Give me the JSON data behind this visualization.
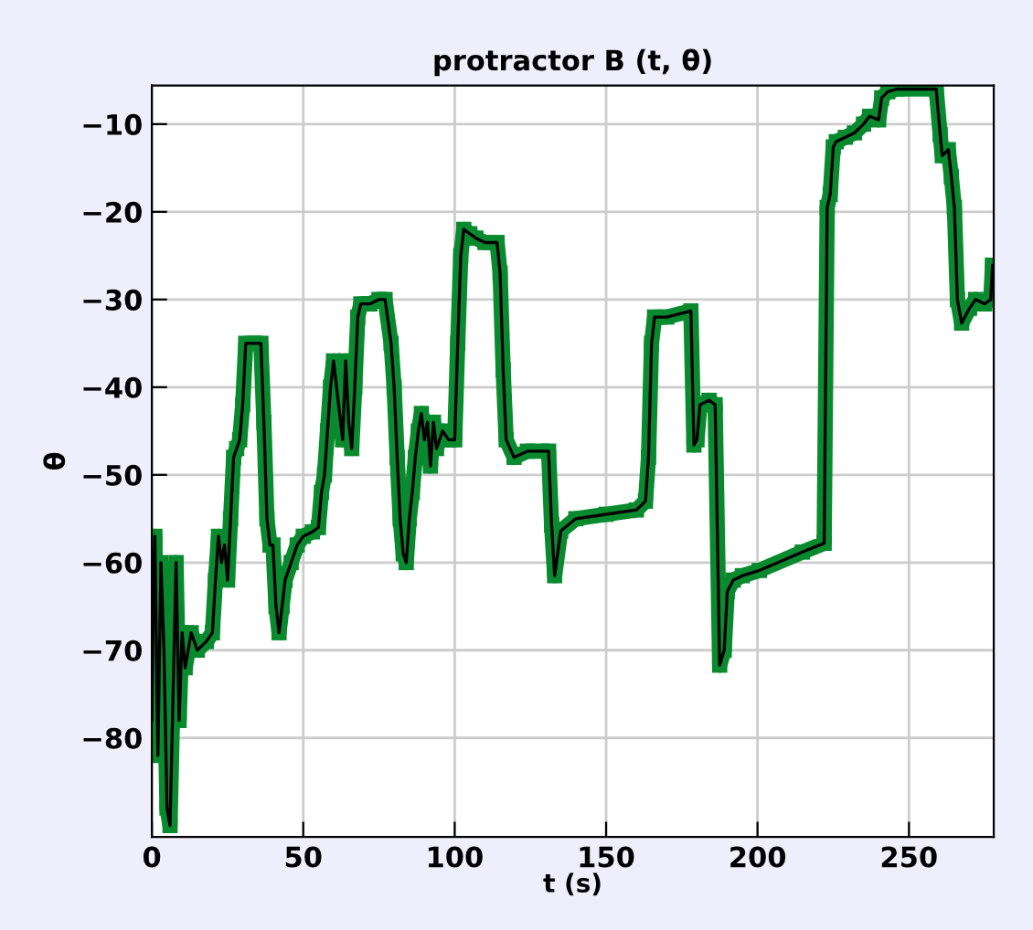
{
  "chart_data": {
    "type": "line",
    "title": "protractor B (t, θ)",
    "xlabel": "t (s)",
    "ylabel": "θ",
    "xlim": [
      0,
      278
    ],
    "ylim": [
      -91.3,
      -5.6
    ],
    "xticks": [
      0,
      50,
      100,
      150,
      200,
      250
    ],
    "yticks": [
      -80,
      -70,
      -60,
      -50,
      -40,
      -30,
      -20,
      -10
    ],
    "grid": true,
    "x": [
      0,
      0.5,
      1,
      2,
      3,
      4,
      5,
      6,
      7,
      8,
      9,
      10,
      11,
      13,
      15,
      18,
      20,
      21,
      22,
      23,
      24,
      25,
      26,
      27,
      28,
      29,
      30,
      31,
      34,
      36,
      37,
      38,
      39,
      40,
      41,
      42,
      43,
      44,
      46,
      48,
      50,
      53,
      55,
      56,
      57,
      58,
      59,
      60,
      61,
      62,
      63,
      64,
      65,
      66,
      67,
      68,
      69,
      72,
      75,
      77,
      79,
      80,
      81,
      82,
      83,
      84,
      85,
      86,
      87,
      88,
      89,
      90,
      91,
      92,
      93,
      94,
      96,
      98,
      100,
      101,
      102,
      103,
      105,
      107,
      110,
      114,
      115,
      116,
      117,
      119.6,
      124,
      131,
      132,
      133,
      135,
      140,
      150,
      160,
      163,
      164,
      165,
      166,
      170,
      178,
      179,
      180,
      181,
      184,
      186,
      187.5,
      189,
      190,
      192,
      195,
      200.6,
      214.8,
      222,
      223,
      224,
      225,
      226,
      229,
      232,
      235,
      237,
      240,
      241,
      243,
      246,
      259,
      260.3,
      261,
      263,
      264,
      265,
      266,
      267.4,
      270,
      272,
      275,
      277,
      277.6
    ],
    "series": [
      {
        "type": "line",
        "color": "#0a8a2e",
        "marker": "square",
        "values": [
          -78,
          -62,
          -57,
          -82,
          -60,
          -70,
          -88,
          -90,
          -75,
          -60,
          -78,
          -68,
          -72,
          -68,
          -70,
          -69,
          -68,
          -62,
          -57,
          -60,
          -58,
          -62,
          -55,
          -48,
          -47,
          -46,
          -42,
          -35,
          -35,
          -35,
          -44,
          -55,
          -58,
          -58,
          -65,
          -68,
          -65,
          -62,
          -60,
          -58,
          -57,
          -56.5,
          -56,
          -52,
          -50,
          -45,
          -40,
          -37,
          -40,
          -43,
          -46,
          -37,
          -44,
          -47,
          -40,
          -32,
          -30.5,
          -30.5,
          -30,
          -30,
          -35,
          -40,
          -48,
          -55,
          -59,
          -60,
          -55,
          -52,
          -48,
          -45,
          -43,
          -46,
          -44,
          -49,
          -44,
          -47,
          -45,
          -46,
          -46,
          -35,
          -25,
          -22,
          -22.5,
          -23,
          -23.5,
          -23.5,
          -27,
          -38,
          -46,
          -48,
          -47.3,
          -47.3,
          -55.7,
          -61.5,
          -56.4,
          -55,
          -54.5,
          -54,
          -53,
          -48,
          -35,
          -32,
          -32,
          -31.3,
          -46.6,
          -46,
          -42,
          -41.5,
          -42,
          -71.7,
          -70,
          -63.3,
          -62,
          -61.5,
          -60.9,
          -58.8,
          -57.8,
          -19.5,
          -18,
          -12.6,
          -12,
          -11.5,
          -11,
          -10,
          -9.1,
          -9.5,
          -7,
          -6.3,
          -6,
          -6,
          -11.2,
          -13.6,
          -12.9,
          -16,
          -19.5,
          -30,
          -32.7,
          -31,
          -30,
          -30.5,
          -30,
          -26.1
        ]
      },
      {
        "color": "#000000",
        "values": [
          -78,
          -62,
          -57,
          -82,
          -60,
          -70,
          -88,
          -90,
          -75,
          -60,
          -78,
          -68,
          -72,
          -68,
          -70,
          -69,
          -68,
          -62,
          -57,
          -60,
          -58,
          -62,
          -55,
          -48,
          -47,
          -46,
          -42,
          -35,
          -35,
          -35,
          -44,
          -55,
          -58,
          -58,
          -65,
          -68,
          -65,
          -62,
          -60,
          -58,
          -57,
          -56.5,
          -56,
          -52,
          -50,
          -45,
          -40,
          -37,
          -40,
          -43,
          -46,
          -37,
          -44,
          -47,
          -40,
          -32,
          -30.5,
          -30.5,
          -30,
          -30,
          -35,
          -40,
          -48,
          -55,
          -59,
          -60,
          -55,
          -52,
          -48,
          -45,
          -43,
          -46,
          -44,
          -49,
          -44,
          -47,
          -45,
          -46,
          -46,
          -35,
          -25,
          -22,
          -22.5,
          -23,
          -23.5,
          -23.5,
          -27,
          -38,
          -46,
          -48,
          -47.3,
          -47.3,
          -55.7,
          -61.5,
          -56.4,
          -55,
          -54.5,
          -54,
          -53,
          -48,
          -35,
          -32,
          -32,
          -31.3,
          -46.6,
          -46,
          -42,
          -41.5,
          -42,
          -71.7,
          -70,
          -63.3,
          -62,
          -61.5,
          -60.9,
          -58.8,
          -57.8,
          -19.5,
          -18,
          -12.6,
          -12,
          -11.5,
          -11,
          -10,
          -9.1,
          -9.5,
          -7,
          -6.3,
          -6,
          -6,
          -11.2,
          -13.6,
          -12.9,
          -16,
          -19.5,
          -30,
          -32.7,
          -31,
          -30,
          -30.5,
          -30,
          -26.1
        ]
      }
    ]
  }
}
